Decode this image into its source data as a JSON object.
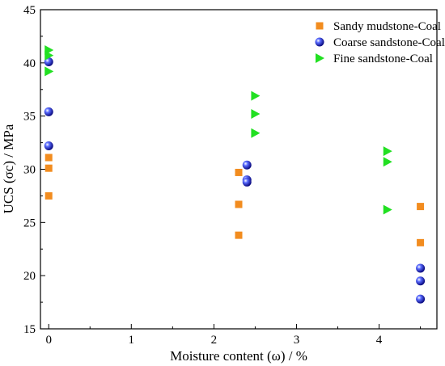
{
  "chart_data": {
    "type": "scatter",
    "xlabel": "Moisture content (ω) / %",
    "ylabel": "UCS (σc) / MPa",
    "xlim": [
      -0.1,
      4.7
    ],
    "ylim": [
      15,
      45
    ],
    "xticks": [
      0,
      1,
      2,
      3,
      4
    ],
    "yticks": [
      15,
      20,
      25,
      30,
      35,
      40,
      45
    ],
    "grid": false,
    "legend_position": "top-right",
    "series": [
      {
        "name": "Sandy mudstone-Coal",
        "marker": "square",
        "color": "#f28c1f",
        "x": [
          0,
          0,
          0,
          2.3,
          2.3,
          2.3,
          4.5,
          4.5
        ],
        "y": [
          31.1,
          30.1,
          27.5,
          29.7,
          26.7,
          23.8,
          26.5,
          23.1
        ]
      },
      {
        "name": "Coarse sandstone-Coal",
        "marker": "sphere",
        "color": "#1e22cc",
        "x": [
          0,
          0,
          0,
          2.4,
          2.4,
          2.4,
          4.5,
          4.5,
          4.5
        ],
        "y": [
          40.1,
          35.4,
          32.2,
          30.4,
          29.0,
          28.8,
          20.7,
          19.5,
          17.8
        ]
      },
      {
        "name": "Fine sandstone-Coal",
        "marker": "triangle-right",
        "color": "#22e022",
        "x": [
          0,
          0,
          0,
          2.5,
          2.5,
          2.5,
          4.1,
          4.1,
          4.1
        ],
        "y": [
          41.2,
          40.7,
          39.2,
          36.9,
          35.2,
          33.4,
          31.7,
          30.7,
          26.2
        ]
      }
    ]
  }
}
